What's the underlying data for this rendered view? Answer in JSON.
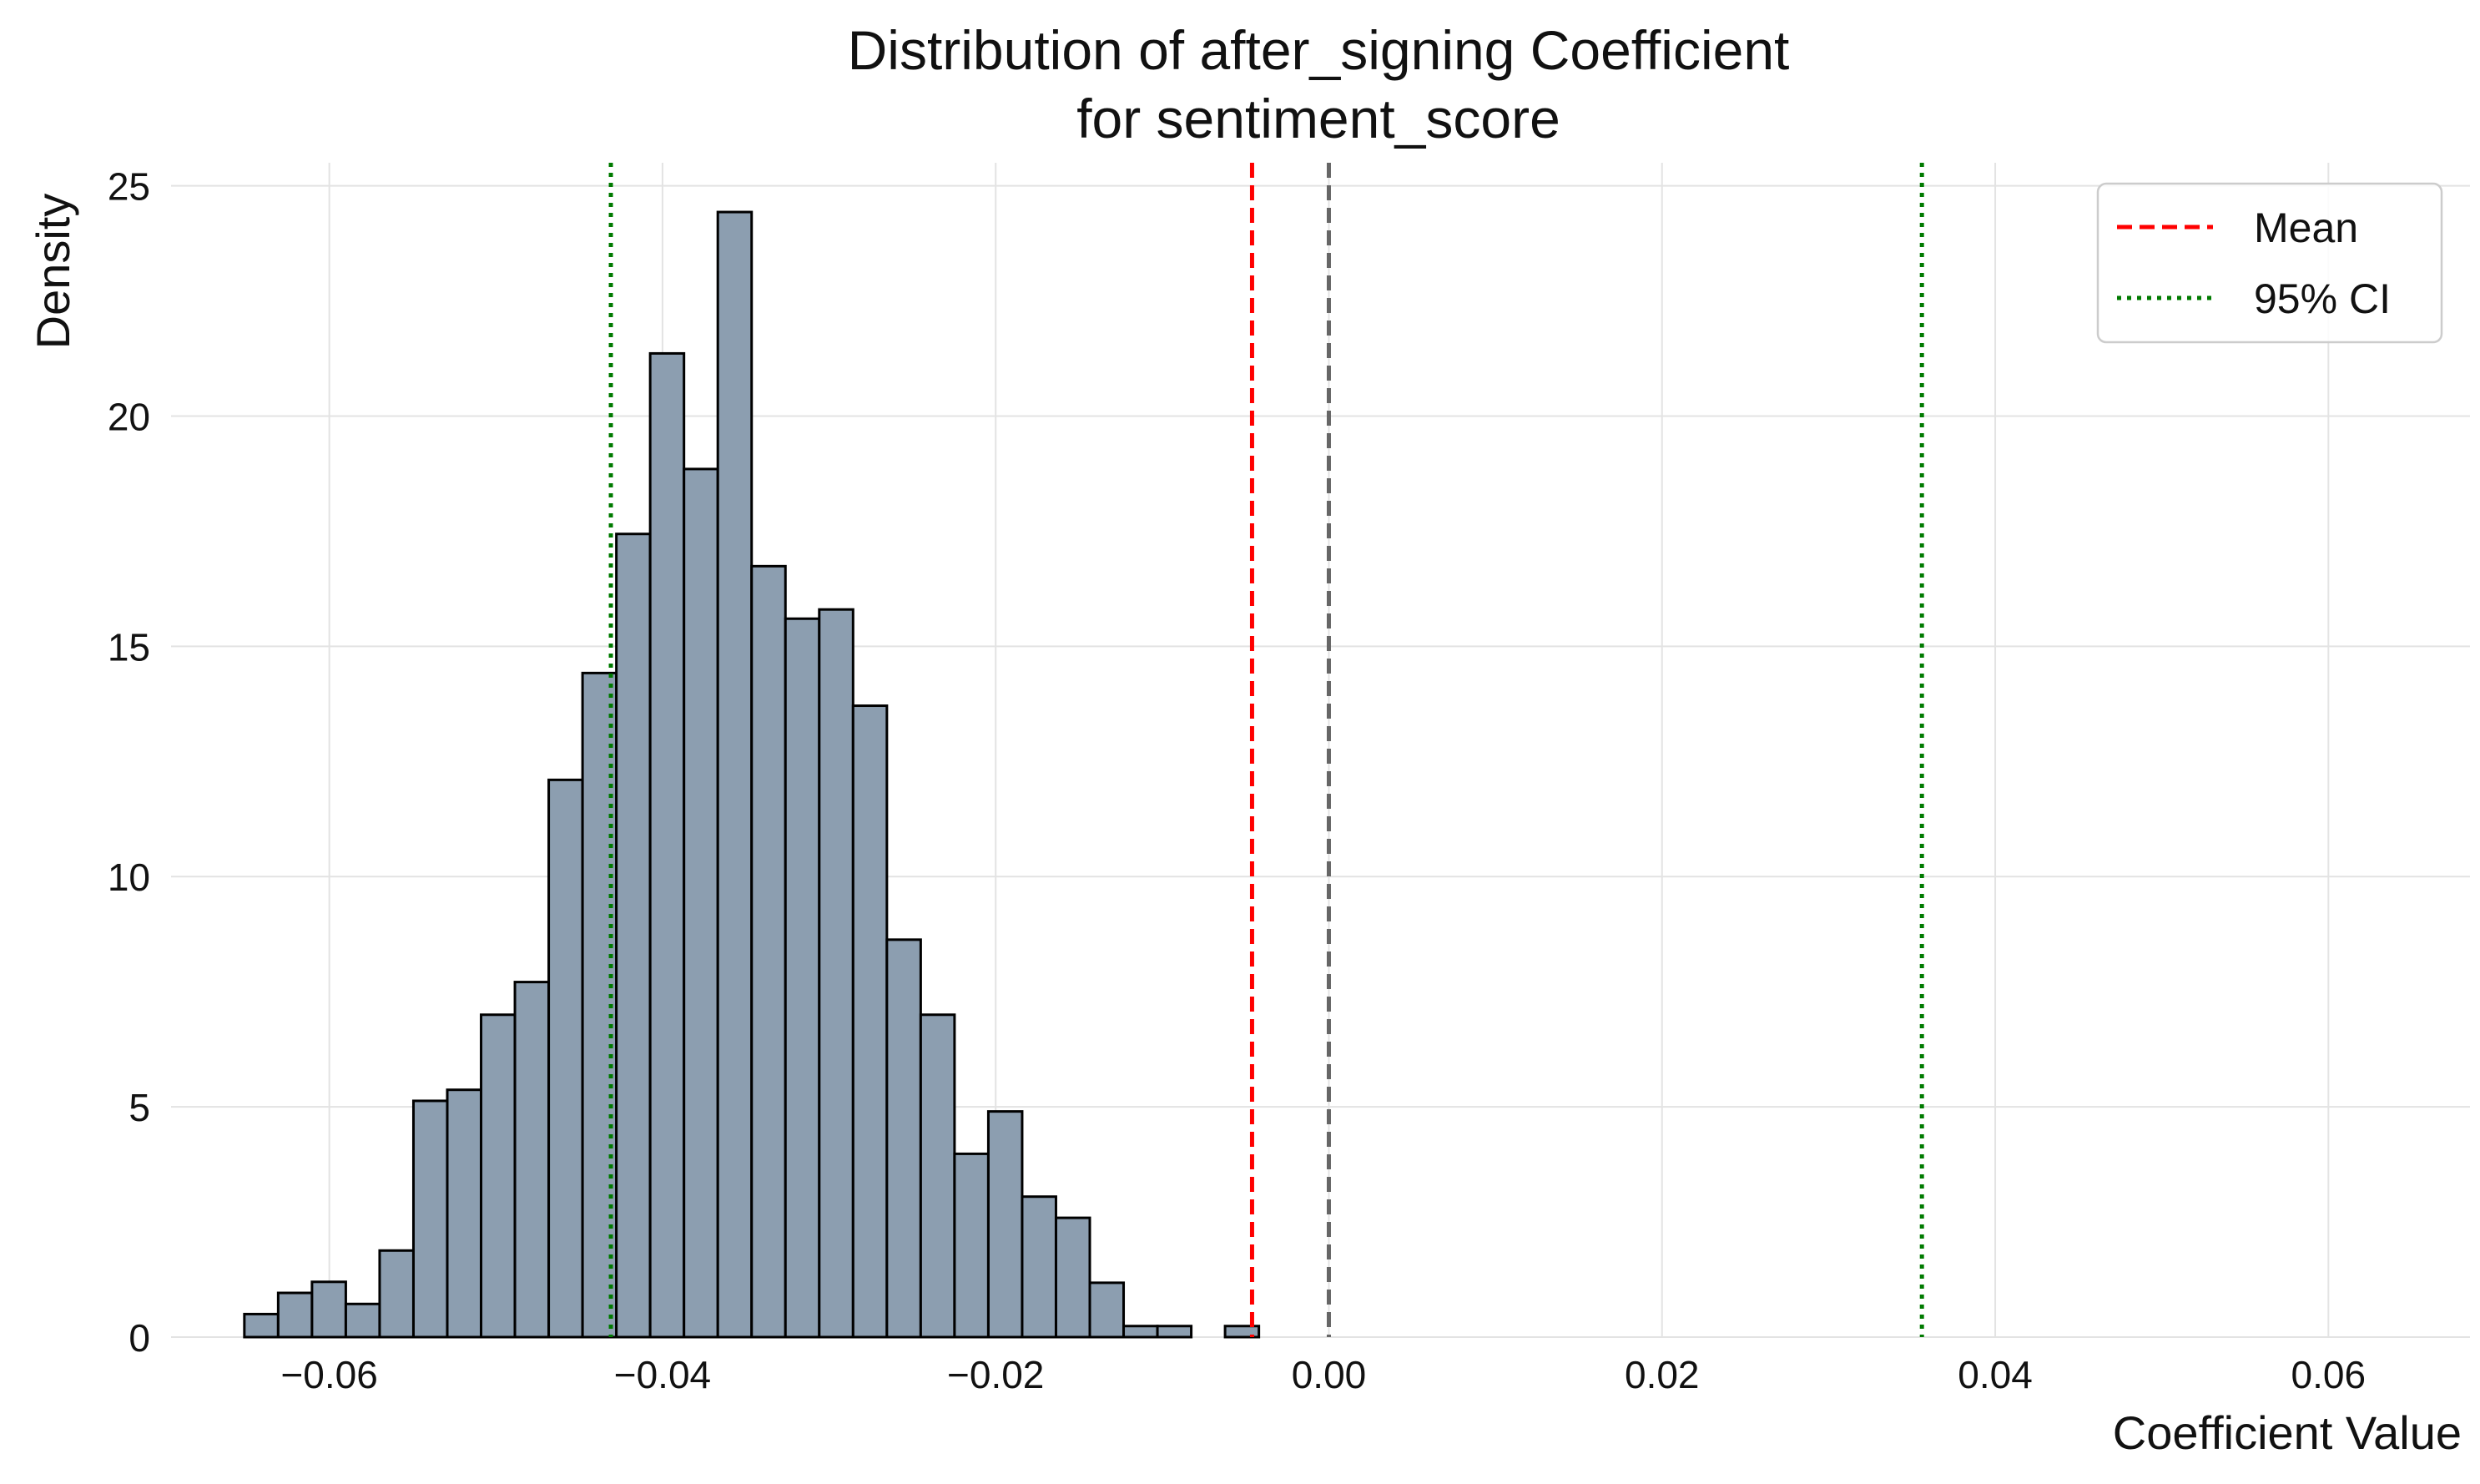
{
  "chart_data": {
    "type": "histogram",
    "title_lines": [
      "Distribution of after_signing Coefficient",
      "for sentiment_score"
    ],
    "xlabel": "Coefficient Value",
    "ylabel": "Density",
    "xlim": [
      -0.0695,
      0.0685
    ],
    "ylim": [
      0,
      25.5
    ],
    "x_ticks": [
      -0.06,
      -0.04,
      -0.02,
      0.0,
      0.02,
      0.04,
      0.06
    ],
    "x_tick_labels": [
      "−0.06",
      "−0.04",
      "−0.02",
      "0.00",
      "0.02",
      "0.04",
      "0.06"
    ],
    "y_ticks": [
      0,
      5,
      10,
      15,
      20,
      25
    ],
    "y_tick_labels": [
      "0",
      "5",
      "10",
      "15",
      "20",
      "25"
    ],
    "grid": true,
    "bins": {
      "start": -0.0651,
      "width": 0.00203,
      "densities": [
        0.5,
        0.96,
        1.2,
        0.72,
        1.88,
        5.13,
        5.37,
        7.0,
        7.71,
        12.1,
        14.42,
        17.44,
        21.36,
        18.85,
        24.43,
        16.74,
        15.6,
        15.8,
        13.71,
        8.63,
        7.0,
        3.98,
        4.9,
        3.05,
        2.59,
        1.18,
        0.24,
        0.24,
        0.0,
        0.24
      ]
    },
    "bar_color": "#8c9eb0",
    "bar_edge_color": "#000000",
    "reference_lines": [
      {
        "name": "Mean",
        "x": -0.00461,
        "color": "#ff0000",
        "style": "dashed",
        "legend": true
      },
      {
        "name": "Zero",
        "x": 0.0,
        "color": "#666666",
        "style": "dashed",
        "legend": false
      },
      {
        "name": "95% CI lower",
        "x": -0.0431,
        "color": "#007a00",
        "style": "dotted",
        "legend": false
      },
      {
        "name": "95% CI upper",
        "x": 0.0356,
        "color": "#007a00",
        "style": "dotted",
        "legend": false
      }
    ],
    "legend": {
      "position": "top-right",
      "entries": [
        {
          "label": "Mean",
          "color": "#ff0000",
          "style": "dashed"
        },
        {
          "label": "95% CI",
          "color": "#007a00",
          "style": "dotted"
        }
      ]
    }
  }
}
